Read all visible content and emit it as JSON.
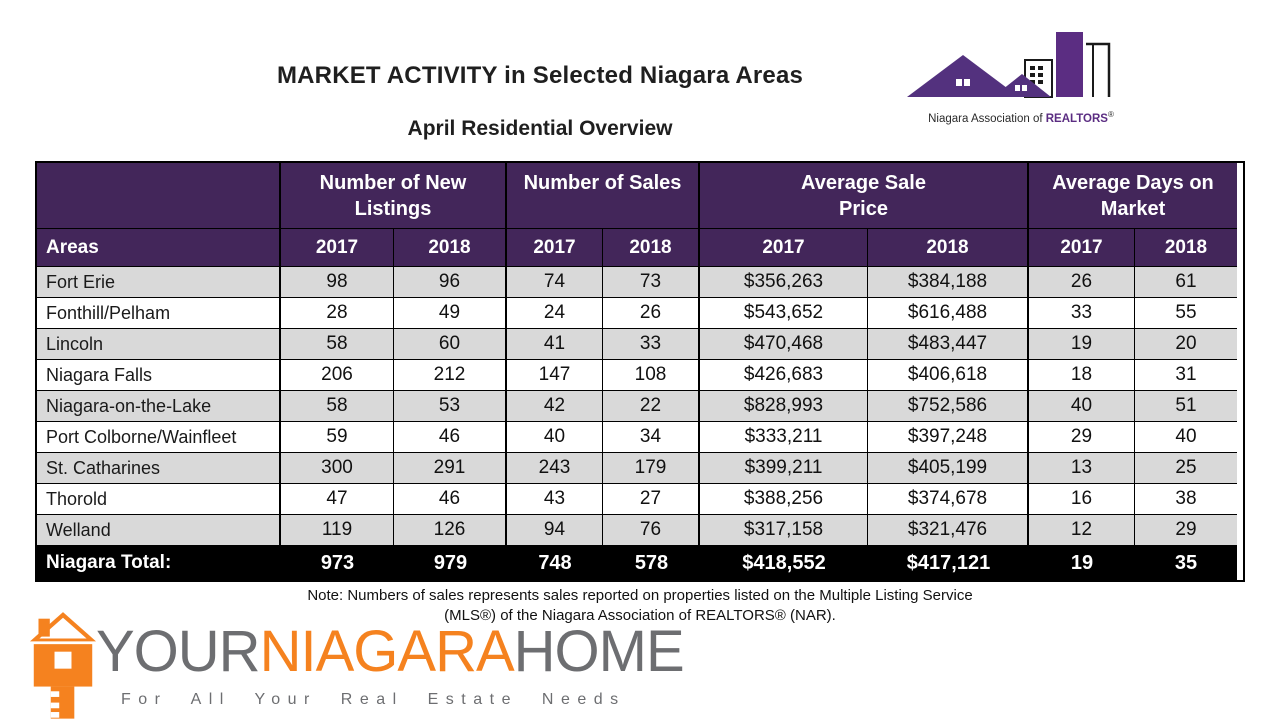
{
  "title": "MARKET ACTIVITY in Selected Niagara Areas",
  "subtitle": "April Residential Overview",
  "nar_logo": {
    "caption_prefix": "Niagara Association of ",
    "caption_brand": "REALTORS",
    "caption_reg": "®"
  },
  "table": {
    "areas_header": "Areas",
    "group_headers": [
      {
        "line1": "Number of New",
        "line2": "Listings"
      },
      {
        "line1": "Number of Sales",
        "line2": ""
      },
      {
        "line1": "Average Sale",
        "line2": "Price"
      },
      {
        "line1": "Average Days on",
        "line2": "Market"
      }
    ],
    "year_headers": [
      "2017",
      "2018",
      "2017",
      "2018",
      "2017",
      "2018",
      "2017",
      "2018"
    ],
    "rows": [
      {
        "area": "Fort Erie",
        "values": [
          "98",
          "96",
          "74",
          "73",
          "$356,263",
          "$384,188",
          "26",
          "61"
        ]
      },
      {
        "area": "Fonthill/Pelham",
        "values": [
          "28",
          "49",
          "24",
          "26",
          "$543,652",
          "$616,488",
          "33",
          "55"
        ]
      },
      {
        "area": "Lincoln",
        "values": [
          "58",
          "60",
          "41",
          "33",
          "$470,468",
          "$483,447",
          "19",
          "20"
        ]
      },
      {
        "area": "Niagara Falls",
        "values": [
          "206",
          "212",
          "147",
          "108",
          "$426,683",
          "$406,618",
          "18",
          "31"
        ]
      },
      {
        "area": "Niagara-on-the-Lake",
        "values": [
          "58",
          "53",
          "42",
          "22",
          "$828,993",
          "$752,586",
          "40",
          "51"
        ]
      },
      {
        "area": "Port Colborne/Wainfleet",
        "values": [
          "59",
          "46",
          "40",
          "34",
          "$333,211",
          "$397,248",
          "29",
          "40"
        ]
      },
      {
        "area": "St. Catharines",
        "values": [
          "300",
          "291",
          "243",
          "179",
          "$399,211",
          "$405,199",
          "13",
          "25"
        ]
      },
      {
        "area": "Thorold",
        "values": [
          "47",
          "46",
          "43",
          "27",
          "$388,256",
          "$374,678",
          "16",
          "38"
        ]
      },
      {
        "area": "Welland",
        "values": [
          "119",
          "126",
          "94",
          "76",
          "$317,158",
          "$321,476",
          "12",
          "29"
        ]
      }
    ],
    "total": {
      "label": "Niagara Total:",
      "values": [
        "973",
        "979",
        "748",
        "578",
        "$418,552",
        "$417,121",
        "19",
        "35"
      ]
    }
  },
  "note": {
    "line1": "Note: Numbers of sales represents sales reported on properties listed on the Multiple Listing Service",
    "line2": "(MLS®) of the Niagara Association of REALTORS® (NAR)."
  },
  "ynh_logo": {
    "your": "YOUR",
    "niagara": "NIAGARA",
    "home": "HOME",
    "tagline": "For All Your Real Estate Needs"
  },
  "colors": {
    "header_purple": "#43265a",
    "nar_purple": "#5b2d82",
    "stripe_gray": "#d9d9d9",
    "total_black": "#000000",
    "logo_orange": "#f5821f",
    "logo_gray": "#6d6e71"
  },
  "chart_data": {
    "type": "table",
    "title": "MARKET ACTIVITY in Selected Niagara Areas",
    "subtitle": "April Residential Overview",
    "columns": [
      "Areas",
      "New Listings 2017",
      "New Listings 2018",
      "Sales 2017",
      "Sales 2018",
      "Avg Sale Price 2017",
      "Avg Sale Price 2018",
      "Avg Days on Market 2017",
      "Avg Days on Market 2018"
    ],
    "rows": [
      [
        "Fort Erie",
        98,
        96,
        74,
        73,
        356263,
        384188,
        26,
        61
      ],
      [
        "Fonthill/Pelham",
        28,
        49,
        24,
        26,
        543652,
        616488,
        33,
        55
      ],
      [
        "Lincoln",
        58,
        60,
        41,
        33,
        470468,
        483447,
        19,
        20
      ],
      [
        "Niagara Falls",
        206,
        212,
        147,
        108,
        426683,
        406618,
        18,
        31
      ],
      [
        "Niagara-on-the-Lake",
        58,
        53,
        42,
        22,
        828993,
        752586,
        40,
        51
      ],
      [
        "Port Colborne/Wainfleet",
        59,
        46,
        40,
        34,
        333211,
        397248,
        29,
        40
      ],
      [
        "St. Catharines",
        300,
        291,
        243,
        179,
        399211,
        405199,
        13,
        25
      ],
      [
        "Thorold",
        47,
        46,
        43,
        27,
        388256,
        374678,
        16,
        38
      ],
      [
        "Welland",
        119,
        126,
        94,
        76,
        317158,
        321476,
        12,
        29
      ]
    ],
    "totals": [
      "Niagara Total:",
      973,
      979,
      748,
      578,
      418552,
      417121,
      19,
      35
    ]
  }
}
